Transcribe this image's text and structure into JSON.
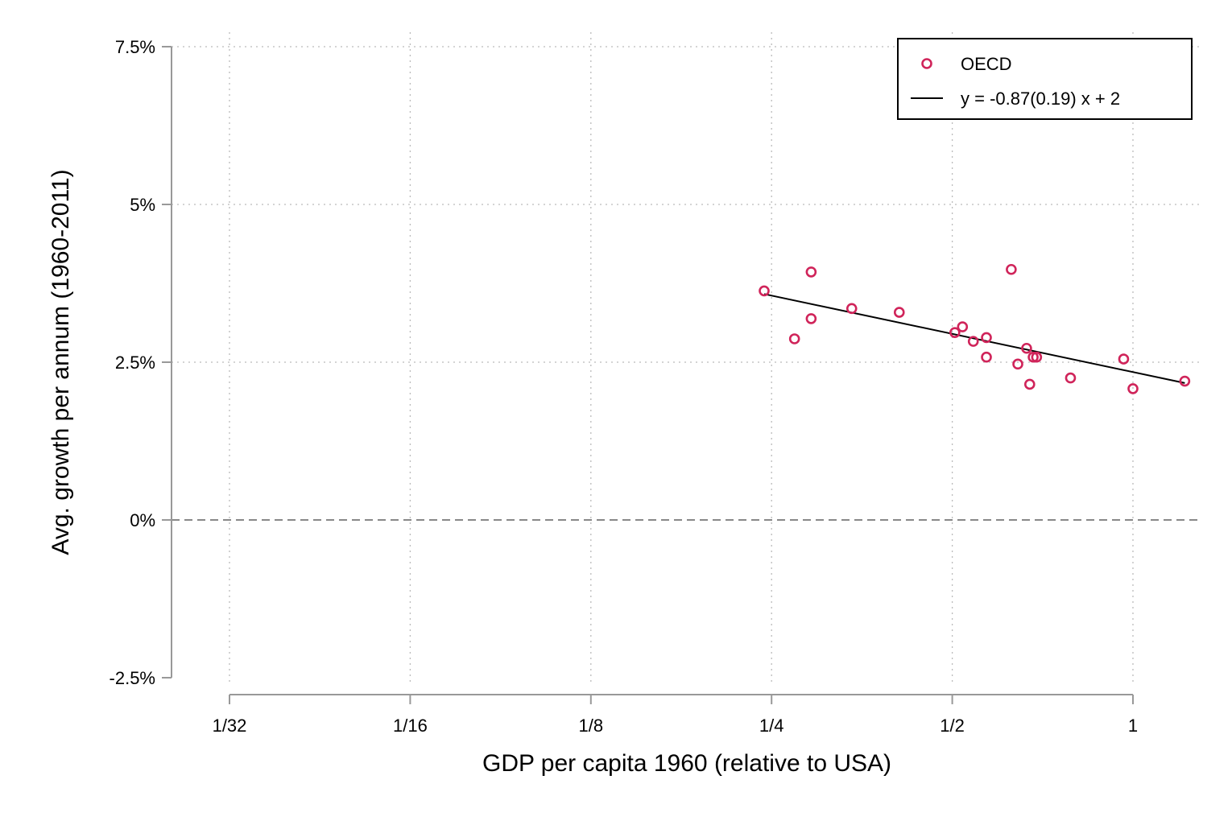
{
  "chart_data": {
    "type": "scatter",
    "title": "",
    "xlabel": "GDP per capita 1960 (relative to USA)",
    "ylabel": "Avg. growth per annum (1960-2011)",
    "x_scale": "log2",
    "xlim": [
      0.03125,
      1.25
    ],
    "ylim": [
      -2.5,
      7.5
    ],
    "x_ticks": [
      {
        "value": 0.03125,
        "label": "1/32"
      },
      {
        "value": 0.0625,
        "label": "1/16"
      },
      {
        "value": 0.125,
        "label": "1/8"
      },
      {
        "value": 0.25,
        "label": "1/4"
      },
      {
        "value": 0.5,
        "label": "1/2"
      },
      {
        "value": 1,
        "label": "1"
      }
    ],
    "y_ticks": [
      {
        "value": -2.5,
        "label": "-2.5%"
      },
      {
        "value": 0,
        "label": "0%"
      },
      {
        "value": 2.5,
        "label": "2.5%"
      },
      {
        "value": 5,
        "label": "5%"
      },
      {
        "value": 7.5,
        "label": "7.5%"
      }
    ],
    "grid": true,
    "zero_line": true,
    "legend_position": "top-right",
    "series": [
      {
        "name": "OECD",
        "kind": "scatter",
        "color": "#d0245a",
        "marker": "hollow-circle",
        "points": [
          {
            "x": 0.243,
            "y": 3.63
          },
          {
            "x": 0.273,
            "y": 2.87
          },
          {
            "x": 0.291,
            "y": 3.19
          },
          {
            "x": 0.291,
            "y": 3.93
          },
          {
            "x": 0.34,
            "y": 3.35
          },
          {
            "x": 0.408,
            "y": 3.29
          },
          {
            "x": 0.505,
            "y": 2.97
          },
          {
            "x": 0.52,
            "y": 3.06
          },
          {
            "x": 0.542,
            "y": 2.83
          },
          {
            "x": 0.57,
            "y": 2.89
          },
          {
            "x": 0.57,
            "y": 2.58
          },
          {
            "x": 0.627,
            "y": 3.97
          },
          {
            "x": 0.643,
            "y": 2.47
          },
          {
            "x": 0.665,
            "y": 2.72
          },
          {
            "x": 0.673,
            "y": 2.15
          },
          {
            "x": 0.682,
            "y": 2.58
          },
          {
            "x": 0.691,
            "y": 2.58
          },
          {
            "x": 0.787,
            "y": 2.25
          },
          {
            "x": 0.965,
            "y": 2.55
          },
          {
            "x": 1.0,
            "y": 2.08
          },
          {
            "x": 1.22,
            "y": 2.2
          }
        ]
      },
      {
        "name": "y = -0.87(0.19) x +  2",
        "kind": "line",
        "color": "#000000",
        "points": [
          {
            "x": 0.243,
            "y": 3.58
          },
          {
            "x": 1.22,
            "y": 2.17
          }
        ]
      }
    ]
  }
}
